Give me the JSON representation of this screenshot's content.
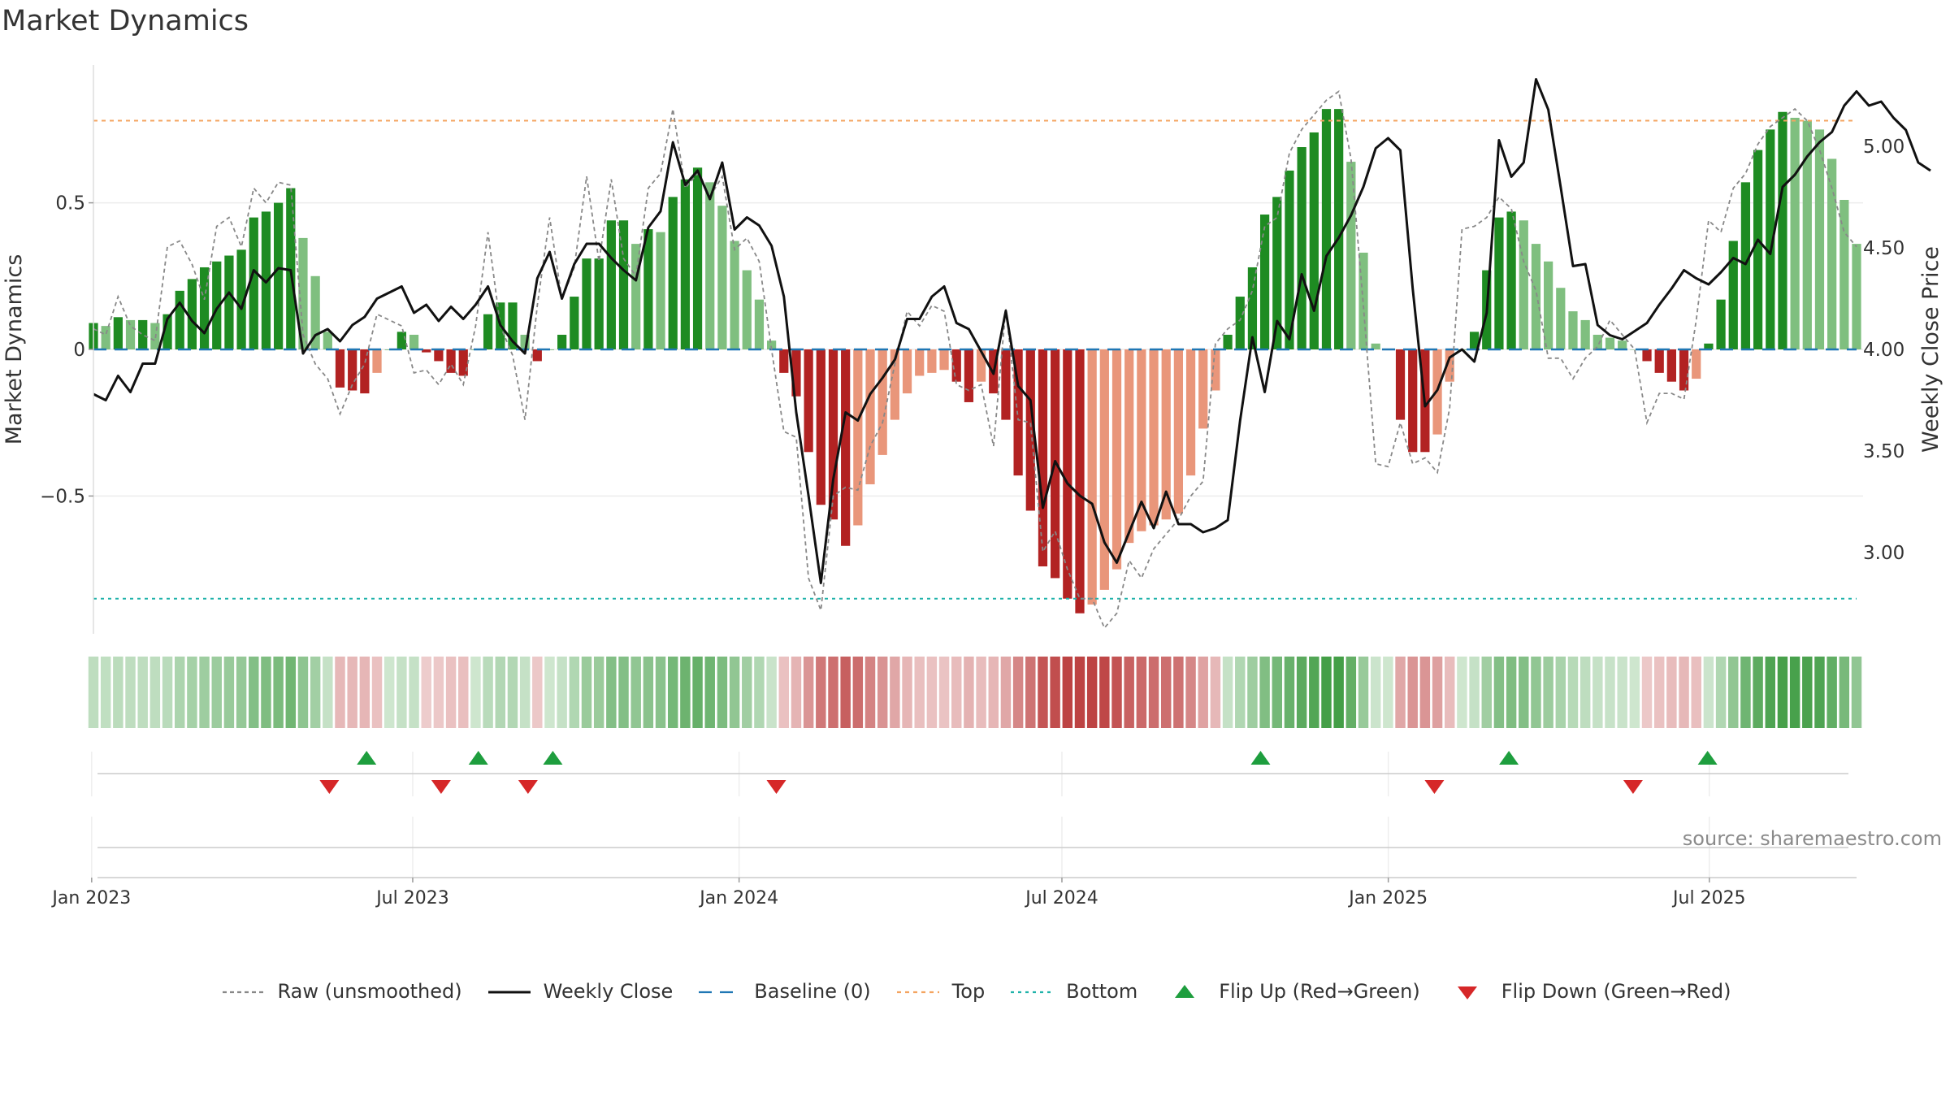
{
  "title": "Market Dynamics",
  "source": "source: sharemaestro.com",
  "colors": {
    "green_strong": "#1e8b22",
    "green_light": "#7fbf7f",
    "red_strong": "#b22222",
    "red_light": "#e9967a",
    "close": "#111111",
    "raw": "#888888",
    "baseline": "#1f77b4",
    "top": "#f4a460",
    "bottom": "#20b2aa",
    "flip_up": "#1e9e3e",
    "flip_down": "#d62728"
  },
  "legend": [
    {
      "key": "raw",
      "label": "Raw (unsmoothed)"
    },
    {
      "key": "close",
      "label": "Weekly Close"
    },
    {
      "key": "baseline",
      "label": "Baseline (0)"
    },
    {
      "key": "top",
      "label": "Top"
    },
    {
      "key": "bottom",
      "label": "Bottom"
    },
    {
      "key": "flip_up",
      "label": "Flip Up (Red→Green)"
    },
    {
      "key": "flip_down",
      "label": "Flip Down (Green→Red)"
    }
  ],
  "chart_data": {
    "type": "bar",
    "title": "Market Dynamics",
    "ylabel": "Market Dynamics",
    "y2label": "Weekly Close Price",
    "ylim": [
      -0.97,
      0.97
    ],
    "y2lim": [
      2.6,
      5.4
    ],
    "yticks": [
      0.5,
      0,
      -0.5
    ],
    "ytick_labels": [
      "0.5",
      "0",
      "−0.5"
    ],
    "y2ticks": [
      3.0,
      3.5,
      4.0,
      4.5,
      5.0
    ],
    "y2tick_labels": [
      "3.00",
      "3.50",
      "4.00",
      "4.50",
      "5.00"
    ],
    "x_start": "2023-01-02",
    "x_end": "2025-09-22",
    "xticks": [
      "2023-01-01",
      "2023-07-01",
      "2024-01-01",
      "2024-07-01",
      "2025-01-01",
      "2025-07-01"
    ],
    "xtick_labels": [
      "Jan 2023",
      "Jul 2023",
      "Jan 2024",
      "Jul 2024",
      "Jan 2025",
      "Jul 2025"
    ],
    "top_level": 0.78,
    "bottom_level": -0.85,
    "baseline_level": 0,
    "grid": true,
    "legend_position": "bottom",
    "series": [
      {
        "name": "Market Dynamics",
        "values": [
          0.09,
          0.08,
          0.11,
          0.1,
          0.1,
          0.09,
          0.12,
          0.2,
          0.24,
          0.28,
          0.3,
          0.32,
          0.34,
          0.45,
          0.47,
          0.5,
          0.55,
          0.38,
          0.25,
          0.06,
          -0.13,
          -0.14,
          -0.15,
          -0.08,
          0,
          0.06,
          0.05,
          -0.01,
          -0.04,
          -0.08,
          -0.09,
          0,
          0.12,
          0.16,
          0.16,
          0.05,
          -0.04,
          0,
          0.05,
          0.18,
          0.31,
          0.31,
          0.44,
          0.44,
          0.36,
          0.41,
          0.4,
          0.52,
          0.58,
          0.62,
          0.57,
          0.49,
          0.37,
          0.27,
          0.17,
          0.03,
          -0.08,
          -0.16,
          -0.35,
          -0.53,
          -0.58,
          -0.67,
          -0.6,
          -0.46,
          -0.36,
          -0.24,
          -0.15,
          -0.09,
          -0.08,
          -0.07,
          -0.11,
          -0.18,
          -0.11,
          -0.15,
          -0.24,
          -0.43,
          -0.55,
          -0.74,
          -0.78,
          -0.85,
          -0.9,
          -0.87,
          -0.82,
          -0.75,
          -0.66,
          -0.62,
          -0.6,
          -0.58,
          -0.56,
          -0.43,
          -0.27,
          -0.14,
          0.05,
          0.18,
          0.28,
          0.46,
          0.52,
          0.61,
          0.69,
          0.74,
          0.82,
          0.82,
          0.64,
          0.33,
          0.02,
          0,
          -0.24,
          -0.35,
          -0.35,
          -0.29,
          -0.11,
          0,
          0.06,
          0.27,
          0.45,
          0.47,
          0.44,
          0.36,
          0.3,
          0.21,
          0.13,
          0.1,
          0.05,
          0.04,
          0.03,
          0,
          -0.04,
          -0.08,
          -0.11,
          -0.14,
          -0.1,
          0.02,
          0.17,
          0.37,
          0.57,
          0.68,
          0.75,
          0.81,
          0.79,
          0.78,
          0.75,
          0.65,
          0.51,
          0.36
        ]
      },
      {
        "name": "Weekly Close",
        "values": [
          3.78,
          3.75,
          3.87,
          3.79,
          3.93,
          3.93,
          4.15,
          4.23,
          4.14,
          4.08,
          4.2,
          4.28,
          4.2,
          4.39,
          4.33,
          4.4,
          4.39,
          3.98,
          4.07,
          4.1,
          4.04,
          4.12,
          4.16,
          4.25,
          4.28,
          4.31,
          4.18,
          4.22,
          4.14,
          4.21,
          4.15,
          4.22,
          4.31,
          4.12,
          4.04,
          3.98,
          4.35,
          4.48,
          4.25,
          4.42,
          4.52,
          4.52,
          4.45,
          4.39,
          4.34,
          4.6,
          4.68,
          5.02,
          4.81,
          4.88,
          4.74,
          4.92,
          4.59,
          4.65,
          4.61,
          4.51,
          4.26,
          3.69,
          3.28,
          2.85,
          3.36,
          3.69,
          3.65,
          3.78,
          3.86,
          3.95,
          4.15,
          4.15,
          4.26,
          4.31,
          4.13,
          4.1,
          3.99,
          3.88,
          4.19,
          3.82,
          3.75,
          3.22,
          3.45,
          3.34,
          3.28,
          3.24,
          3.05,
          2.95,
          3.1,
          3.25,
          3.12,
          3.3,
          3.14,
          3.14,
          3.1,
          3.12,
          3.16,
          3.65,
          4.06,
          3.79,
          4.14,
          4.05,
          4.37,
          4.19,
          4.46,
          4.55,
          4.66,
          4.8,
          4.99,
          5.04,
          4.98,
          4.3,
          3.72,
          3.8,
          3.96,
          4.0,
          3.94,
          4.18,
          5.03,
          4.85,
          4.92,
          5.33,
          5.18,
          4.8,
          4.41,
          4.42,
          4.12,
          4.07,
          4.05,
          4.09,
          4.13,
          4.22,
          4.3,
          4.39,
          4.35,
          4.32,
          4.38,
          4.45,
          4.42,
          4.54,
          4.47,
          4.8,
          4.86,
          4.95,
          5.02,
          5.07,
          5.2,
          5.27,
          5.2,
          5.22,
          5.14,
          5.08,
          4.92,
          4.88
        ]
      },
      {
        "name": "Raw (unsmoothed)",
        "values": [
          0.07,
          0.05,
          0.18,
          0.08,
          0.05,
          0.03,
          0.35,
          0.37,
          0.29,
          0.17,
          0.42,
          0.45,
          0.35,
          0.55,
          0.5,
          0.57,
          0.56,
          0.05,
          -0.05,
          -0.1,
          -0.22,
          -0.12,
          -0.05,
          0.12,
          0.1,
          0.08,
          -0.08,
          -0.07,
          -0.12,
          -0.05,
          -0.12,
          0.08,
          0.4,
          0.08,
          -0.02,
          -0.24,
          0.15,
          0.45,
          0.17,
          0.28,
          0.59,
          0.3,
          0.58,
          0.31,
          0.25,
          0.55,
          0.6,
          0.82,
          0.55,
          0.6,
          0.52,
          0.59,
          0.34,
          0.38,
          0.3,
          0.0,
          -0.28,
          -0.3,
          -0.78,
          -0.89,
          -0.5,
          -0.47,
          -0.48,
          -0.33,
          -0.25,
          -0.05,
          0.13,
          0.08,
          0.15,
          0.13,
          -0.12,
          -0.14,
          -0.12,
          -0.33,
          0.14,
          -0.24,
          -0.25,
          -0.69,
          -0.62,
          -0.75,
          -0.85,
          -0.85,
          -0.95,
          -0.9,
          -0.72,
          -0.78,
          -0.68,
          -0.63,
          -0.58,
          -0.5,
          -0.45,
          0.02,
          0.07,
          0.1,
          0.2,
          0.42,
          0.45,
          0.67,
          0.75,
          0.8,
          0.85,
          0.88,
          0.65,
          0.15,
          -0.39,
          -0.4,
          -0.25,
          -0.39,
          -0.37,
          -0.42,
          -0.2,
          0.41,
          0.42,
          0.45,
          0.52,
          0.48,
          0.3,
          0.2,
          -0.03,
          -0.03,
          -0.1,
          -0.03,
          0.01,
          0.1,
          0.05,
          0,
          -0.25,
          -0.15,
          -0.15,
          -0.17,
          0.1,
          0.44,
          0.4,
          0.55,
          0.6,
          0.7,
          0.76,
          0.79,
          0.82,
          0.78,
          0.68,
          0.55,
          0.4,
          0.35
        ]
      }
    ],
    "flip_up_dates": [
      "2023-06-05",
      "2023-08-07",
      "2023-09-18",
      "2024-10-21",
      "2025-03-10",
      "2025-06-30"
    ],
    "flip_down_dates": [
      "2023-05-15",
      "2023-07-17",
      "2023-09-04",
      "2024-01-22",
      "2025-01-27",
      "2025-05-19"
    ]
  }
}
